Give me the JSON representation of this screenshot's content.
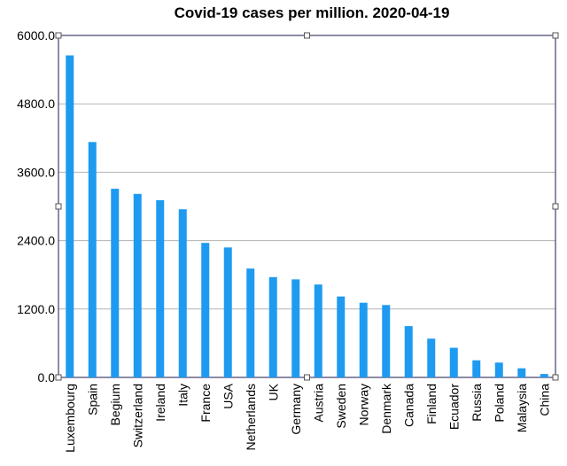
{
  "chart_data": {
    "type": "bar",
    "title": "Covid-19 cases per million. 2020-04-19",
    "xlabel": "",
    "ylabel": "",
    "ylim": [
      0,
      6000
    ],
    "yticks": [
      "0.0",
      "1200.0",
      "2400.0",
      "3600.0",
      "4800.0",
      "6000.0"
    ],
    "grid": true,
    "categories": [
      "Luxembourg",
      "Spain",
      "Begium",
      "Switzerland",
      "Ireland",
      "Italy",
      "France",
      "USA",
      "Netherlands",
      "UK",
      "Germany",
      "Austria",
      "Sweden",
      "Norway",
      "Denmark",
      "Canada",
      "Finland",
      "Ecuador",
      "Russia",
      "Poland",
      "Malaysia",
      "China"
    ],
    "values": [
      5650,
      4130,
      3310,
      3220,
      3110,
      2950,
      2360,
      2280,
      1910,
      1760,
      1720,
      1630,
      1420,
      1310,
      1270,
      900,
      680,
      520,
      300,
      260,
      160,
      60
    ],
    "colors": {
      "bar": "#1E9BF0",
      "grid": "#b3b3b3",
      "frame": "#1a1a4d"
    }
  }
}
